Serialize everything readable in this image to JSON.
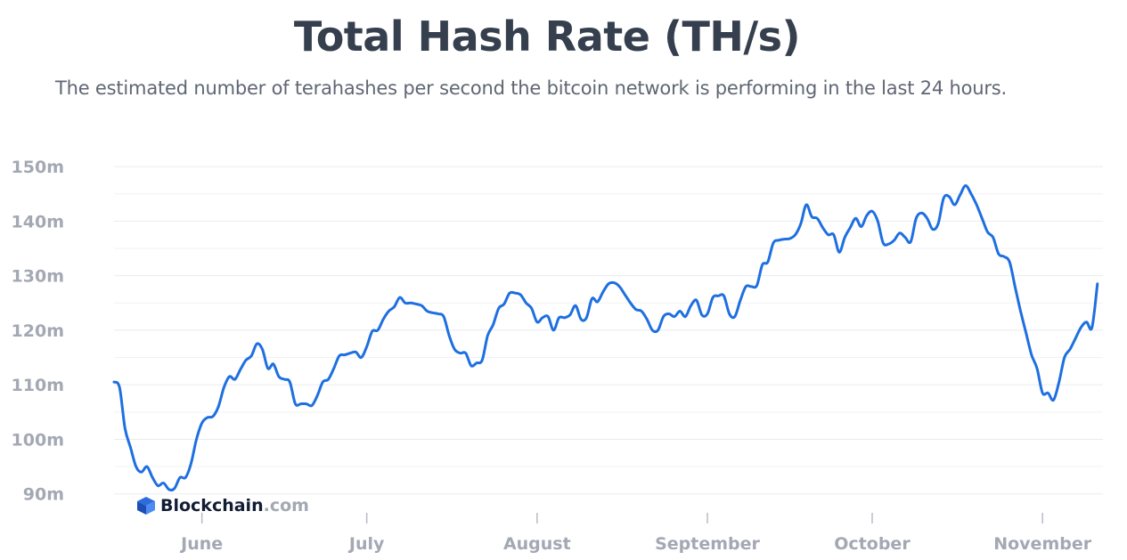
{
  "chart_data": {
    "type": "line",
    "title": "Total Hash Rate (TH/s)",
    "subtitle": "The estimated number of terahashes per second the bitcoin network is performing in the last 24 hours.",
    "xlabel": "",
    "ylabel": "",
    "y_ticks": [
      {
        "value": 90,
        "label": "90m"
      },
      {
        "value": 100,
        "label": "100m"
      },
      {
        "value": 110,
        "label": "110m"
      },
      {
        "value": 120,
        "label": "120m"
      },
      {
        "value": 130,
        "label": "130m"
      },
      {
        "value": 140,
        "label": "140m"
      },
      {
        "value": 150,
        "label": "150m"
      }
    ],
    "ylim": [
      88,
      150.5
    ],
    "xlim": [
      "2022-05-16",
      "2022-11-12"
    ],
    "x_ticks": [
      {
        "date": "2022-06-01",
        "label": "June"
      },
      {
        "date": "2022-07-01",
        "label": "July"
      },
      {
        "date": "2022-08-01",
        "label": "August"
      },
      {
        "date": "2022-09-01",
        "label": "September"
      },
      {
        "date": "2022-10-01",
        "label": "October"
      },
      {
        "date": "2022-11-01",
        "label": "November"
      }
    ],
    "grid": true,
    "line_color": "#1e6fe0",
    "watermark": {
      "brand": "Blockchain",
      "suffix": ".com",
      "icon": "blockchain-cube-icon"
    },
    "x": [
      "2022-05-16",
      "2022-05-17",
      "2022-05-18",
      "2022-05-19",
      "2022-05-20",
      "2022-05-21",
      "2022-05-22",
      "2022-05-23",
      "2022-05-24",
      "2022-05-25",
      "2022-05-26",
      "2022-05-27",
      "2022-05-28",
      "2022-05-29",
      "2022-05-30",
      "2022-05-31",
      "2022-06-01",
      "2022-06-02",
      "2022-06-03",
      "2022-06-04",
      "2022-06-05",
      "2022-06-06",
      "2022-06-07",
      "2022-06-08",
      "2022-06-09",
      "2022-06-10",
      "2022-06-11",
      "2022-06-12",
      "2022-06-13",
      "2022-06-14",
      "2022-06-15",
      "2022-06-16",
      "2022-06-17",
      "2022-06-18",
      "2022-06-19",
      "2022-06-20",
      "2022-06-21",
      "2022-06-22",
      "2022-06-23",
      "2022-06-24",
      "2022-06-25",
      "2022-06-26",
      "2022-06-27",
      "2022-06-28",
      "2022-06-29",
      "2022-06-30",
      "2022-07-01",
      "2022-07-02",
      "2022-07-03",
      "2022-07-04",
      "2022-07-05",
      "2022-07-06",
      "2022-07-07",
      "2022-07-08",
      "2022-07-09",
      "2022-07-10",
      "2022-07-11",
      "2022-07-12",
      "2022-07-13",
      "2022-07-14",
      "2022-07-15",
      "2022-07-16",
      "2022-07-17",
      "2022-07-18",
      "2022-07-19",
      "2022-07-20",
      "2022-07-21",
      "2022-07-22",
      "2022-07-23",
      "2022-07-24",
      "2022-07-25",
      "2022-07-26",
      "2022-07-27",
      "2022-07-28",
      "2022-07-29",
      "2022-07-30",
      "2022-07-31",
      "2022-08-01",
      "2022-08-02",
      "2022-08-03",
      "2022-08-04",
      "2022-08-05",
      "2022-08-06",
      "2022-08-07",
      "2022-08-08",
      "2022-08-09",
      "2022-08-10",
      "2022-08-11",
      "2022-08-12",
      "2022-08-13",
      "2022-08-14",
      "2022-08-15",
      "2022-08-16",
      "2022-08-17",
      "2022-08-18",
      "2022-08-19",
      "2022-08-20",
      "2022-08-21",
      "2022-08-22",
      "2022-08-23",
      "2022-08-24",
      "2022-08-25",
      "2022-08-26",
      "2022-08-27",
      "2022-08-28",
      "2022-08-29",
      "2022-08-30",
      "2022-08-31",
      "2022-09-01",
      "2022-09-02",
      "2022-09-03",
      "2022-09-04",
      "2022-09-05",
      "2022-09-06",
      "2022-09-07",
      "2022-09-08",
      "2022-09-09",
      "2022-09-10",
      "2022-09-11",
      "2022-09-12",
      "2022-09-13",
      "2022-09-14",
      "2022-09-15",
      "2022-09-16",
      "2022-09-17",
      "2022-09-18",
      "2022-09-19",
      "2022-09-20",
      "2022-09-21",
      "2022-09-22",
      "2022-09-23",
      "2022-09-24",
      "2022-09-25",
      "2022-09-26",
      "2022-09-27",
      "2022-09-28",
      "2022-09-29",
      "2022-09-30",
      "2022-10-01",
      "2022-10-02",
      "2022-10-03",
      "2022-10-04",
      "2022-10-05",
      "2022-10-06",
      "2022-10-07",
      "2022-10-08",
      "2022-10-09",
      "2022-10-10",
      "2022-10-11",
      "2022-10-12",
      "2022-10-13",
      "2022-10-14",
      "2022-10-15",
      "2022-10-16",
      "2022-10-17",
      "2022-10-18",
      "2022-10-19",
      "2022-10-20",
      "2022-10-21",
      "2022-10-22",
      "2022-10-23",
      "2022-10-24",
      "2022-10-25",
      "2022-10-26",
      "2022-10-27",
      "2022-10-28",
      "2022-10-29",
      "2022-10-30",
      "2022-10-31",
      "2022-11-01",
      "2022-11-02",
      "2022-11-03",
      "2022-11-04",
      "2022-11-05",
      "2022-11-06",
      "2022-11-07",
      "2022-11-08",
      "2022-11-09",
      "2022-11-10",
      "2022-11-11"
    ],
    "series": [
      {
        "values": [
          110.5,
          109.5,
          102,
          98.5,
          95,
          94,
          95,
          93,
          91.5,
          92,
          90.8,
          91,
          93,
          93,
          95.5,
          100,
          103,
          104,
          104.2,
          106,
          109.5,
          111.5,
          111,
          112.8,
          114.5,
          115.3,
          117.5,
          116.5,
          113,
          113.8,
          111.5,
          111,
          110.5,
          106.5,
          106.5,
          106.5,
          106.2,
          108,
          110.5,
          111,
          113,
          115.3,
          115.5,
          115.8,
          116,
          115,
          117,
          119.8,
          120,
          122,
          123.5,
          124.3,
          126,
          125,
          125,
          124.8,
          124.5,
          123.5,
          123.2,
          123,
          122.5,
          119,
          116.5,
          115.8,
          115.8,
          113.5,
          114,
          114.5,
          119,
          121,
          124,
          124.8,
          126.8,
          126.8,
          126.5,
          125,
          124,
          121.5,
          122.3,
          122.5,
          120,
          122.3,
          122.3,
          122.8,
          124.5,
          122,
          122.3,
          125.8,
          125.2,
          127,
          128.5,
          128.7,
          128,
          126.5,
          125,
          123.8,
          123.5,
          122,
          120,
          120,
          122.5,
          123,
          122.5,
          123.5,
          122.5,
          124.5,
          125.5,
          122.8,
          123,
          126,
          126.3,
          126.3,
          123,
          122.5,
          125.5,
          128,
          128,
          128.2,
          132,
          132.5,
          136,
          136.5,
          136.7,
          136.8,
          137.5,
          139.5,
          143,
          140.8,
          140.5,
          138.8,
          137.5,
          137.5,
          134.3,
          137,
          138.8,
          140.5,
          139,
          141,
          141.8,
          140,
          136,
          135.8,
          136.5,
          137.8,
          137,
          136.2,
          140.5,
          141.5,
          140.5,
          138.5,
          139.5,
          144.2,
          144.5,
          143,
          144.8,
          146.5,
          145,
          143,
          140.5,
          138,
          137,
          134,
          133.5,
          132.5,
          128,
          123.5,
          119.5,
          115.5,
          113,
          108.5,
          108.5,
          107.2,
          110.5,
          115,
          116.5,
          118.5,
          120.5,
          121.5,
          120.5,
          128.5
        ]
      }
    ]
  }
}
